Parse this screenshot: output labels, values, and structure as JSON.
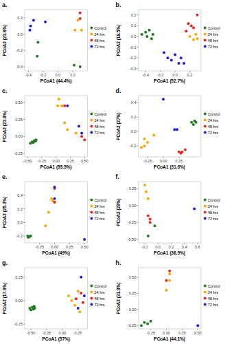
{
  "chart_data": [
    {
      "type": "scatter",
      "title": "a.",
      "x_label": "PCoA1 (44.4%)",
      "y_label": "PCoA2 (23.8%)",
      "xlim": [
        -0.45,
        0.4
      ],
      "ylim": [
        -0.45,
        0.3
      ],
      "xticks": [
        -0.4,
        -0.2,
        {
          "value": 0,
          "label": "0.0"
        },
        0.2
      ],
      "yticks": [
        -0.4,
        -0.2,
        {
          "value": 0,
          "label": "0.0"
        },
        0.2
      ],
      "legend": "right",
      "series": [
        {
          "name": "Control",
          "color": "#1e7b1e",
          "x": [
            -0.27,
            -0.28,
            0.22,
            0.3
          ],
          "values": [
            -0.1,
            -0.27,
            -0.38,
            -0.4
          ]
        },
        {
          "name": "24 hrs",
          "color": "#ffa500",
          "x": [
            0.23,
            0.27,
            0.32
          ],
          "values": [
            0.05,
            0.17,
            0.05
          ]
        },
        {
          "name": "48 hrs",
          "color": "#e8251a",
          "x": [
            0.3,
            0.3
          ],
          "values": [
            0.26,
            0.19
          ]
        },
        {
          "name": "72 hrs",
          "color": "#1c1ce0",
          "x": [
            -0.37,
            -0.33,
            -0.17,
            -0.38
          ],
          "values": [
            0.1,
            0.17,
            0.15,
            0.05
          ]
        }
      ]
    },
    {
      "type": "scatter",
      "title": "b.",
      "x_label": "PCoA1 (52.7%)",
      "y_label": "PCoA2 (18.5%)",
      "xlim": [
        -0.5,
        0.35
      ],
      "ylim": [
        -0.32,
        0.25
      ],
      "xticks": [
        -0.4,
        -0.2,
        {
          "value": 0,
          "label": "0.0"
        },
        0.2
      ],
      "yticks": [
        -0.3,
        -0.2,
        -0.1,
        {
          "value": 0,
          "label": "0.0"
        },
        0.1,
        0.2
      ],
      "legend": "right",
      "series": [
        {
          "name": "Control",
          "color": "#1e7b1e",
          "x": [
            -0.45,
            -0.4,
            -0.38,
            -0.35,
            -0.3,
            -0.32
          ],
          "values": [
            0.02,
            0.04,
            0.0,
            0.06,
            0.02,
            -0.02
          ]
        },
        {
          "name": "24 hrs",
          "color": "#ffa500",
          "x": [
            0.2,
            0.25,
            0.28,
            0.3
          ],
          "values": [
            0.0,
            -0.03,
            0.02,
            -0.02
          ]
        },
        {
          "name": "48 hrs",
          "color": "#e8251a",
          "x": [
            0.15,
            0.18,
            0.22,
            0.25,
            0.3
          ],
          "values": [
            0.05,
            0.12,
            0.1,
            0.08,
            0.2
          ]
        },
        {
          "name": "72 hrs",
          "color": "#1c1ce0",
          "x": [
            -0.15,
            -0.1,
            -0.05,
            0.0,
            0.05,
            0.08,
            0.12
          ],
          "values": [
            -0.15,
            -0.2,
            -0.22,
            -0.17,
            -0.25,
            -0.2,
            -0.25
          ]
        }
      ]
    },
    {
      "type": "scatter",
      "title": "c.",
      "x_label": "PCoA1 (55.5%)",
      "y_label": "PCoA2 (23.8%)",
      "xlim": [
        -0.55,
        0.55
      ],
      "ylim": [
        -0.3,
        0.6
      ],
      "xticks": [
        {
          "value": -0.5,
          "label": "-0.50"
        },
        -0.25,
        {
          "value": 0,
          "label": "0.00"
        },
        0.25,
        {
          "value": 0.5,
          "label": "0.50"
        }
      ],
      "yticks": [
        -0.25,
        {
          "value": 0,
          "label": "0.00"
        },
        0.25,
        {
          "value": 0.5,
          "label": "0.50"
        }
      ],
      "legend": "right",
      "series": [
        {
          "name": "Control",
          "color": "#1e7b1e",
          "x": [
            -0.45,
            -0.42,
            -0.4,
            -0.38,
            -0.36,
            -0.35
          ],
          "values": [
            -0.1,
            -0.08,
            -0.09,
            -0.06,
            -0.07,
            -0.05
          ]
        },
        {
          "name": "24 hrs",
          "color": "#ffa500",
          "x": [
            0.05,
            0.03,
            0.1,
            0.15,
            0.2,
            0.35
          ],
          "values": [
            0.55,
            0.45,
            0.45,
            0.2,
            0.1,
            0.05
          ]
        },
        {
          "name": "48 hrs",
          "color": "#e8251a",
          "x": [
            0.15,
            0.45,
            0.5
          ],
          "values": [
            0.45,
            0.0,
            -0.05
          ]
        },
        {
          "name": "72 hrs",
          "color": "#1c1ce0",
          "x": [
            0.2,
            0.4,
            0.45
          ],
          "values": [
            0.45,
            0.15,
            0.05
          ]
        }
      ]
    },
    {
      "type": "scatter",
      "title": "d.",
      "x_label": "PCoA1 (31.6%)",
      "y_label": "PCoA2 (27%)",
      "xlim": [
        -0.4,
        0.6
      ],
      "ylim": [
        -0.35,
        0.5
      ],
      "xticks": [
        -0.25,
        {
          "value": 0,
          "label": "0.00"
        },
        0.25
      ],
      "yticks": [
        -0.2,
        {
          "value": 0,
          "label": "0.0"
        },
        0.2,
        0.4
      ],
      "legend": "right",
      "series": [
        {
          "name": "Control",
          "color": "#1e7b1e",
          "x": [
            0.45,
            0.5,
            0.52,
            0.48
          ],
          "values": [
            0.13,
            0.15,
            0.13,
            0.1
          ]
        },
        {
          "name": "24 hrs",
          "color": "#ffa500",
          "x": [
            -0.3,
            -0.3,
            -0.25,
            -0.15,
            -0.35
          ],
          "values": [
            -0.1,
            -0.2,
            -0.15,
            -0.05,
            -0.22
          ]
        },
        {
          "name": "48 hrs",
          "color": "#e8251a",
          "x": [
            0.25,
            0.3,
            0.35,
            0.28
          ],
          "values": [
            -0.28,
            -0.28,
            -0.25,
            -0.3
          ]
        },
        {
          "name": "72 hrs",
          "color": "#1c1ce0",
          "x": [
            0.0,
            0.18,
            0.22
          ],
          "values": [
            0.45,
            0.03,
            0.03
          ]
        }
      ]
    },
    {
      "type": "scatter",
      "title": "e.",
      "x_label": "PCoA1 (49%)",
      "y_label": "PCoA2 (25.3%)",
      "xlim": [
        -0.5,
        0.55
      ],
      "ylim": [
        -0.3,
        0.6
      ],
      "xticks": [
        -0.25,
        {
          "value": 0,
          "label": "0.00"
        },
        0.25,
        {
          "value": 0.5,
          "label": "0.50"
        }
      ],
      "yticks": [
        -0.2,
        {
          "value": 0,
          "label": "0.0"
        },
        0.2,
        0.4
      ],
      "legend": "right",
      "series": [
        {
          "name": "Control",
          "color": "#1e7b1e",
          "x": [
            -0.45,
            -0.44,
            -0.42,
            -0.4
          ],
          "values": [
            -0.2,
            -0.22,
            -0.21,
            -0.2
          ]
        },
        {
          "name": "24 hrs",
          "color": "#ffa500",
          "x": [
            -0.05,
            -0.03,
            0.0,
            -0.1,
            -0.15
          ],
          "values": [
            0.35,
            0.32,
            0.3,
            0.15,
            -0.05
          ]
        },
        {
          "name": "48 hrs",
          "color": "#e8251a",
          "x": [
            0.0,
            0.0
          ],
          "values": [
            0.3,
            0.5
          ]
        },
        {
          "name": "72 hrs",
          "color": "#1c1ce0",
          "x": [
            0.0,
            0.0,
            0.5
          ],
          "values": [
            0.52,
            0.35,
            -0.25
          ]
        }
      ]
    },
    {
      "type": "scatter",
      "title": "f.",
      "x_label": "PCoA1 (36.9%)",
      "y_label": "PCoA2 (29%)",
      "xlim": [
        -0.3,
        0.65
      ],
      "ylim": [
        -0.55,
        0.35
      ],
      "xticks": [
        -0.2,
        {
          "value": 0,
          "label": "0.0"
        },
        0.2,
        0.4,
        0.6
      ],
      "yticks": [
        {
          "value": -0.5,
          "label": "-0.50"
        },
        -0.25,
        {
          "value": 0,
          "label": "0.00"
        },
        0.25
      ],
      "legend": "right",
      "series": [
        {
          "name": "Control",
          "color": "#1e7b1e",
          "x": [
            -0.15,
            -0.05
          ],
          "values": [
            -0.45,
            -0.3
          ]
        },
        {
          "name": "24 hrs",
          "color": "#ffa500",
          "x": [
            -0.2,
            -0.18,
            -0.15
          ],
          "values": [
            0.3,
            0.2,
            0.1
          ]
        },
        {
          "name": "48 hrs",
          "color": "#e8251a",
          "x": [
            -0.15,
            -0.12,
            -0.12
          ],
          "values": [
            -0.15,
            -0.2,
            -0.25
          ]
        },
        {
          "name": "72 hrs",
          "color": "#1c1ce0",
          "x": [
            0.55
          ],
          "values": [
            -0.05
          ]
        }
      ]
    },
    {
      "type": "scatter",
      "title": "g.",
      "x_label": "PCoA1 (57%)",
      "y_label": "PCoA2 (17.9%)",
      "xlim": [
        -0.6,
        0.4
      ],
      "ylim": [
        -0.3,
        0.35
      ],
      "xticks": [
        {
          "value": -0.5,
          "label": "-0.50"
        },
        -0.25,
        {
          "value": 0,
          "label": "0.00"
        },
        0.25
      ],
      "yticks": [
        -0.25,
        {
          "value": 0,
          "label": "0.00"
        },
        0.25
      ],
      "legend": "right",
      "series": [
        {
          "name": "Control",
          "color": "#1e7b1e",
          "x": [
            -0.52,
            -0.5,
            -0.48,
            -0.46,
            -0.45,
            -0.44
          ],
          "values": [
            -0.08,
            -0.1,
            -0.07,
            -0.09,
            -0.06,
            -0.08
          ]
        },
        {
          "name": "24 hrs",
          "color": "#ffa500",
          "x": [
            0.1,
            0.15,
            0.2,
            0.25,
            0.28
          ],
          "values": [
            0.05,
            0.0,
            -0.05,
            0.1,
            -0.12
          ]
        },
        {
          "name": "48 hrs",
          "color": "#e8251a",
          "x": [
            0.22,
            0.3,
            0.33
          ],
          "values": [
            0.02,
            0.08,
            -0.02
          ]
        },
        {
          "name": "72 hrs",
          "color": "#1c1ce0",
          "x": [
            0.3,
            0.25,
            0.35
          ],
          "values": [
            0.25,
            -0.08,
            0.05
          ]
        }
      ]
    },
    {
      "type": "scatter",
      "title": "h.",
      "x_label": "PCoA1 (44.1%)",
      "y_label": "PCoA2 (31.9%)",
      "xlim": [
        -0.45,
        0.55
      ],
      "ylim": [
        -0.3,
        0.65
      ],
      "xticks": [
        -0.25,
        {
          "value": 0,
          "label": "0.00"
        },
        0.25,
        {
          "value": 0.5,
          "label": "0.50"
        }
      ],
      "yticks": [
        -0.25,
        {
          "value": 0,
          "label": "0.00"
        },
        0.25,
        {
          "value": 0.5,
          "label": "0.50"
        }
      ],
      "legend": "right",
      "series": [
        {
          "name": "Control",
          "color": "#1e7b1e",
          "x": [
            -0.35,
            -0.3,
            -0.25,
            -0.4
          ],
          "values": [
            -0.2,
            -0.22,
            -0.18,
            -0.25
          ]
        },
        {
          "name": "24 hrs",
          "color": "#ffa500",
          "x": [
            0.05,
            0.0,
            0.05
          ],
          "values": [
            0.55,
            0.3,
            0.45
          ]
        },
        {
          "name": "48 hrs",
          "color": "#e8251a",
          "x": [
            0.05,
            0.0
          ],
          "values": [
            0.6,
            0.45
          ]
        },
        {
          "name": "72 hrs",
          "color": "#1c1ce0",
          "x": [
            0.5
          ],
          "values": [
            -0.25
          ]
        }
      ]
    }
  ]
}
